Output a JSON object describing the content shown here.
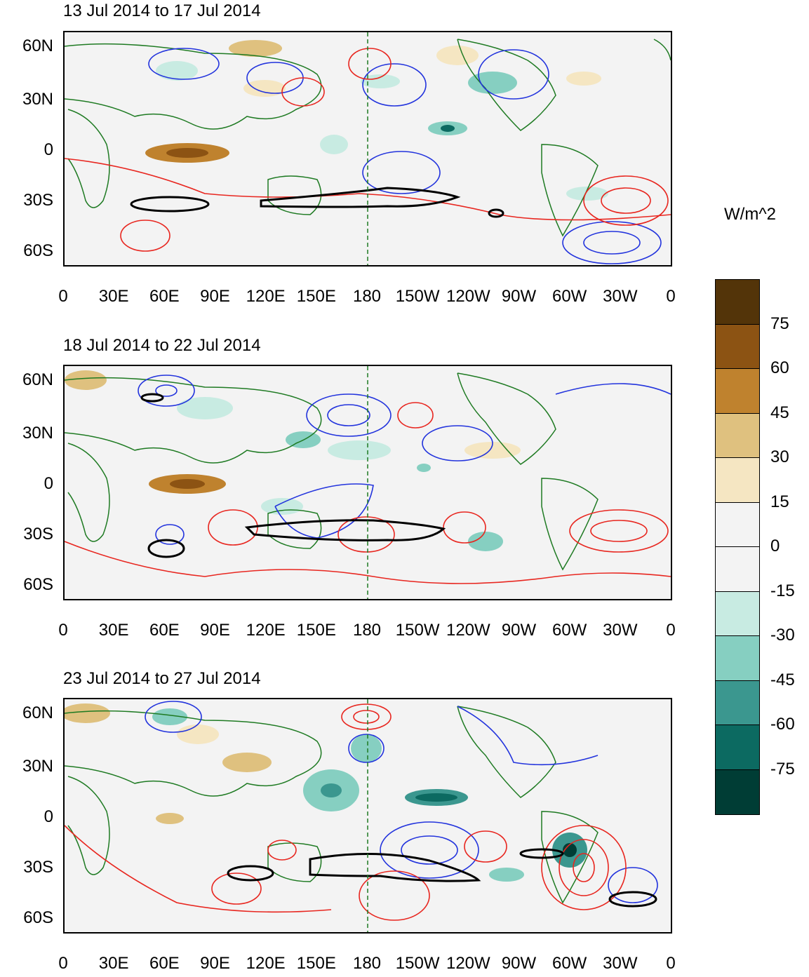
{
  "figure": {
    "unit_label": "W/m^2",
    "lat_ticks": [
      "60N",
      "30N",
      "0",
      "30S",
      "60S"
    ],
    "lon_ticks": [
      "0",
      "30E",
      "60E",
      "90E",
      "120E",
      "150E",
      "180",
      "150W",
      "120W",
      "90W",
      "60W",
      "30W",
      "0"
    ]
  },
  "colors": {
    "positive_contour": "#e8261f",
    "negative_contour": "#2233dd",
    "bold_contour": "#000000",
    "coastline": "#1e7a22",
    "dateline": "#1e7a22",
    "background": "#f3f3f3"
  },
  "colorbar": {
    "levels": [
      "75",
      "60",
      "45",
      "30",
      "15",
      "0",
      "-15",
      "-30",
      "-45",
      "-60",
      "-75"
    ],
    "colors": [
      "#533409",
      "#8c5313",
      "#bf822e",
      "#dfc17f",
      "#f5e6c2",
      "#f3f3f3",
      "#f3f3f3",
      "#c8ebe2",
      "#86cfc1",
      "#3b978f",
      "#0c6a61",
      "#003d35"
    ]
  },
  "panels": [
    {
      "title": "13 Jul 2014 to 17 Jul 2014"
    },
    {
      "title": "18 Jul 2014 to 22 Jul 2014"
    },
    {
      "title": "23 Jul 2014 to 27 Jul 2014"
    }
  ]
}
